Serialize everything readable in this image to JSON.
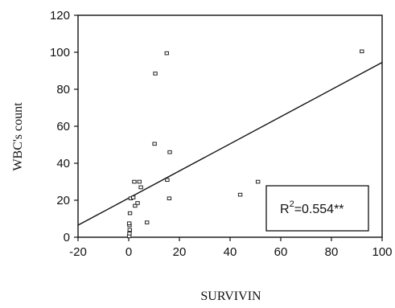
{
  "chart_data": {
    "type": "scatter",
    "title": "",
    "xlabel": "SURVIVIN",
    "ylabel": "WBC's count",
    "xlim": [
      -20,
      100
    ],
    "ylim": [
      0,
      120
    ],
    "xticks": [
      -20,
      0,
      20,
      40,
      60,
      80,
      100
    ],
    "yticks": [
      0,
      20,
      40,
      60,
      80,
      100,
      120
    ],
    "grid": false,
    "points": [
      {
        "x": 0.2,
        "y": 0.5
      },
      {
        "x": 0.3,
        "y": 2
      },
      {
        "x": 0.4,
        "y": 4
      },
      {
        "x": 0.3,
        "y": 6.5
      },
      {
        "x": 0.2,
        "y": 7.5
      },
      {
        "x": 0.5,
        "y": 13
      },
      {
        "x": 0.8,
        "y": 21
      },
      {
        "x": 1.8,
        "y": 21.5
      },
      {
        "x": 2.5,
        "y": 17
      },
      {
        "x": 3.5,
        "y": 18.5
      },
      {
        "x": 4.8,
        "y": 27
      },
      {
        "x": 2.2,
        "y": 30
      },
      {
        "x": 4.2,
        "y": 30
      },
      {
        "x": 7.2,
        "y": 8
      },
      {
        "x": 10.2,
        "y": 50.5
      },
      {
        "x": 10.5,
        "y": 88.5
      },
      {
        "x": 15,
        "y": 99.5
      },
      {
        "x": 15.2,
        "y": 31
      },
      {
        "x": 16,
        "y": 21
      },
      {
        "x": 16.2,
        "y": 46
      },
      {
        "x": 44,
        "y": 23
      },
      {
        "x": 51,
        "y": 30
      },
      {
        "x": 92,
        "y": 100.5
      }
    ],
    "trendline": {
      "x1": -20,
      "y1": 6.5,
      "x2": 100,
      "y2": 94.5
    },
    "annotation": {
      "label_prefix": "R",
      "label_sup": "2",
      "label_suffix": "=0.554**"
    }
  }
}
